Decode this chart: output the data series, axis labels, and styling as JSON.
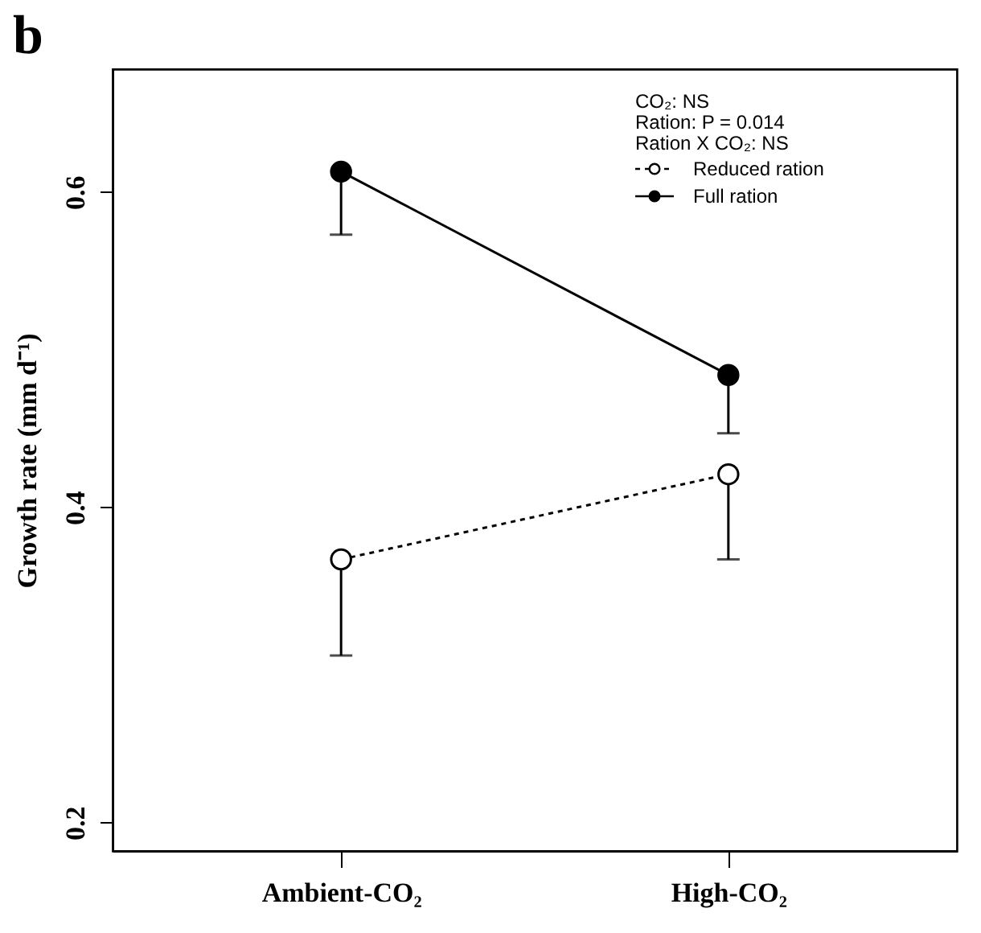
{
  "chart_data": {
    "type": "line",
    "title": "b",
    "ylabel": "Growth rate (mm d⁻¹)",
    "categories": [
      "Ambient-CO₂",
      "High-CO₂"
    ],
    "series": [
      {
        "name": "Reduced ration",
        "color": "#000000",
        "line_style": "dotted",
        "values": [
          0.367,
          0.421
        ],
        "errors": [
          [
            0.306,
            0.367
          ],
          [
            0.367,
            0.421
          ]
        ]
      },
      {
        "name": "Full ration",
        "color": "#000000",
        "line_style": "solid",
        "values": [
          0.613,
          0.484
        ],
        "errors": [
          [
            0.573,
            0.613
          ],
          [
            0.447,
            0.484
          ]
        ]
      }
    ],
    "ylim": [
      0.182,
      0.678
    ],
    "yticks": [
      0.2,
      0.4,
      0.6
    ],
    "marker": "circle",
    "legend": "top right",
    "annotations": [
      "CO₂: NS",
      "Ration: P = 0.014",
      "Ration X CO₂: NS"
    ]
  }
}
